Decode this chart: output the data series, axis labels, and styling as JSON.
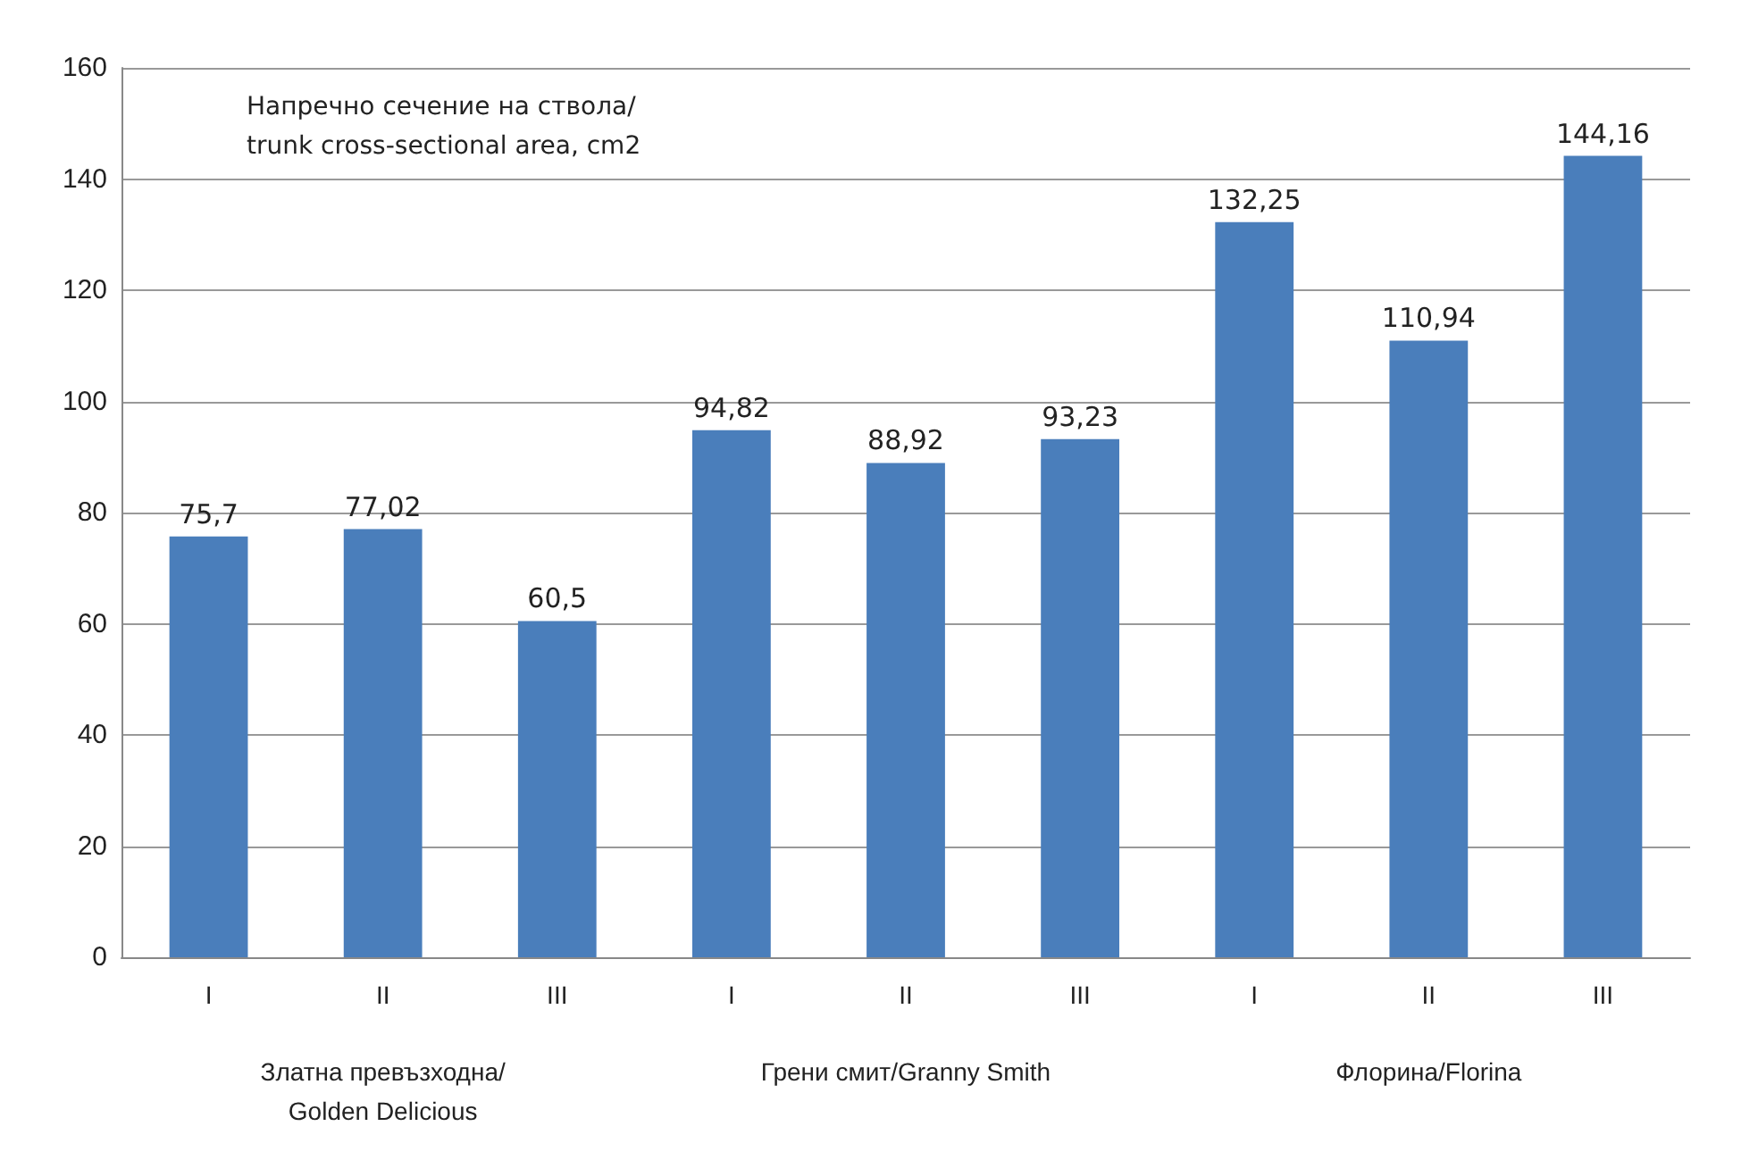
{
  "chart_data": {
    "type": "bar",
    "title": "Напречно сечение на ствола/ trunk cross-sectional area, cm2",
    "categories": [
      "I",
      "II",
      "III",
      "I",
      "II",
      "III",
      "I",
      "II",
      "III"
    ],
    "values": [
      75.7,
      77.02,
      60.5,
      94.82,
      88.92,
      93.23,
      132.25,
      110.94,
      144.16
    ],
    "value_labels": [
      "75,7",
      "77,02",
      "60,5",
      "94,82",
      "88,92",
      "93,23",
      "132,25",
      "110,94",
      "144,16"
    ],
    "color": "#4a7ebb",
    "annotations": [
      "Златна превъзходна/Golden Delicious",
      "Грени смит/Granny Smith",
      "Флорина/Florina"
    ],
    "ylim": [
      0,
      160
    ],
    "yticks": [
      0,
      20,
      40,
      60,
      80,
      100,
      120,
      140,
      160
    ],
    "grid": "y"
  }
}
